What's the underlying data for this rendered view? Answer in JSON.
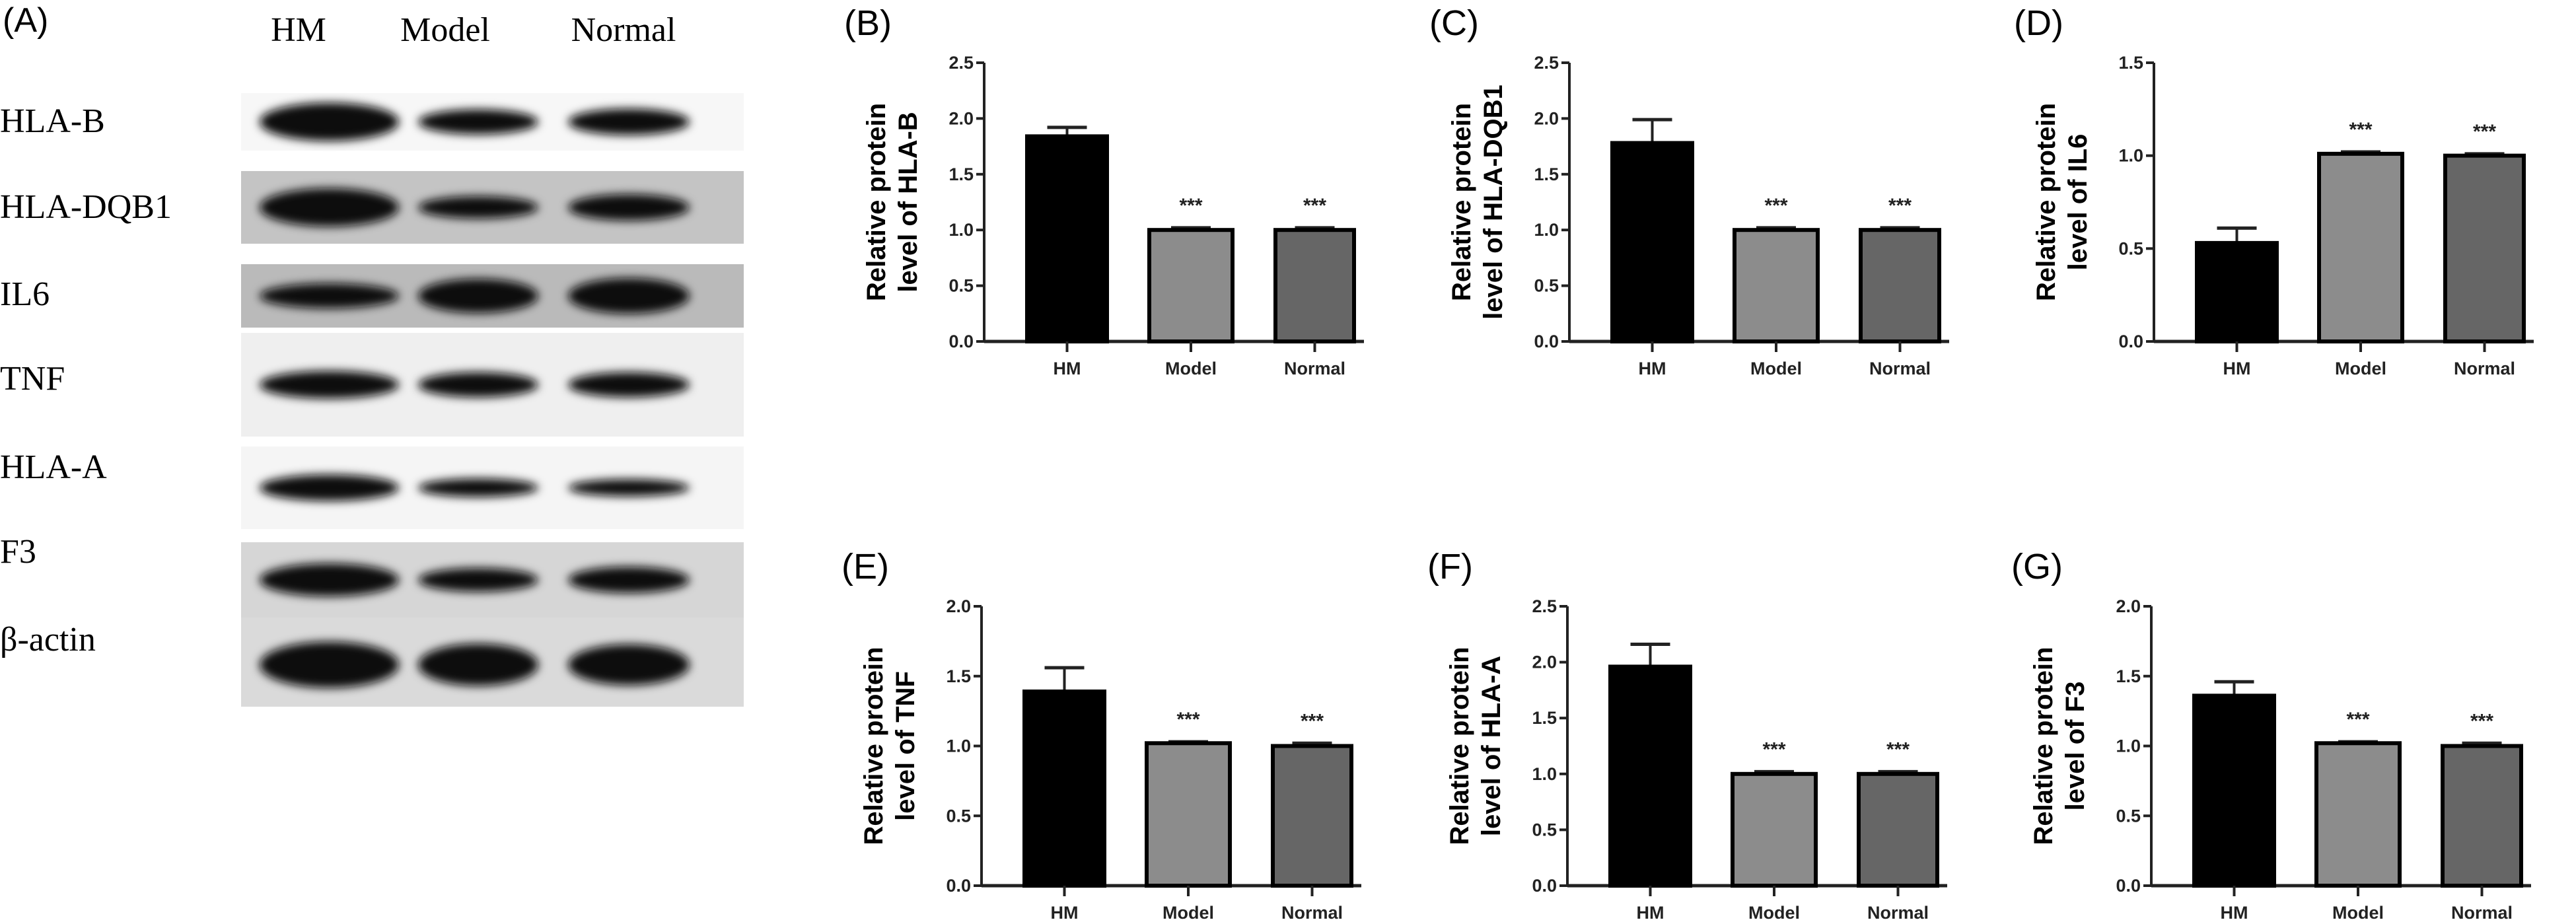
{
  "blot": {
    "panel_label": "(A)",
    "lanes": [
      "HM",
      "Model",
      "Normal"
    ],
    "rows": [
      "HLA-B",
      "HLA-DQB1",
      "IL6",
      "TNF",
      "HLA-A",
      "F3",
      "β-actin"
    ]
  },
  "colors": {
    "HM": "#000000",
    "Model": "#8c8c8c",
    "Normal": "#666666"
  },
  "chart_data": [
    {
      "type": "bar",
      "panel_label": "(B)",
      "title": "",
      "ylabel_lines": [
        "Relative protein",
        "level of HLA-B"
      ],
      "xlabel": "",
      "categories": [
        "HM",
        "Model",
        "Normal"
      ],
      "values": [
        1.84,
        1.0,
        1.0
      ],
      "errors": [
        0.08,
        0.02,
        0.02
      ],
      "significance": [
        "",
        "***",
        "***"
      ],
      "ylim": [
        0,
        2.5
      ],
      "yticks": [
        "0.0",
        "0.5",
        "1.0",
        "1.5",
        "2.0",
        "2.5"
      ],
      "grid": false
    },
    {
      "type": "bar",
      "panel_label": "(C)",
      "title": "",
      "ylabel_lines": [
        "Relative protein",
        "level of HLA-DQB1"
      ],
      "xlabel": "",
      "categories": [
        "HM",
        "Model",
        "Normal"
      ],
      "values": [
        1.78,
        1.0,
        1.0
      ],
      "errors": [
        0.21,
        0.02,
        0.02
      ],
      "significance": [
        "",
        "***",
        "***"
      ],
      "ylim": [
        0,
        2.5
      ],
      "yticks": [
        "0.0",
        "0.5",
        "1.0",
        "1.5",
        "2.0",
        "2.5"
      ],
      "grid": false
    },
    {
      "type": "bar",
      "panel_label": "(D)",
      "title": "",
      "ylabel_lines": [
        "Relative protein",
        "level of IL6"
      ],
      "xlabel": "",
      "categories": [
        "HM",
        "Model",
        "Normal"
      ],
      "values": [
        0.53,
        1.01,
        1.0
      ],
      "errors": [
        0.08,
        0.01,
        0.01
      ],
      "significance": [
        "",
        "***",
        "***"
      ],
      "ylim": [
        0,
        1.5
      ],
      "yticks": [
        "0.0",
        "0.5",
        "1.0",
        "1.5"
      ],
      "grid": false
    },
    {
      "type": "bar",
      "panel_label": "(E)",
      "title": "",
      "ylabel_lines": [
        "Relative protein",
        "level of TNF"
      ],
      "xlabel": "",
      "categories": [
        "HM",
        "Model",
        "Normal"
      ],
      "values": [
        1.39,
        1.02,
        1.0
      ],
      "errors": [
        0.17,
        0.01,
        0.02
      ],
      "significance": [
        "",
        "***",
        "***"
      ],
      "ylim": [
        0,
        2.0
      ],
      "yticks": [
        "0.0",
        "0.5",
        "1.0",
        "1.5",
        "2.0"
      ],
      "grid": false
    },
    {
      "type": "bar",
      "panel_label": "(F)",
      "title": "",
      "ylabel_lines": [
        "Relative protein",
        "level of HLA-A"
      ],
      "xlabel": "",
      "categories": [
        "HM",
        "Model",
        "Normal"
      ],
      "values": [
        1.96,
        1.0,
        1.0
      ],
      "errors": [
        0.2,
        0.02,
        0.02
      ],
      "significance": [
        "",
        "***",
        "***"
      ],
      "ylim": [
        0,
        2.5
      ],
      "yticks": [
        "0.0",
        "0.5",
        "1.0",
        "1.5",
        "2.0",
        "2.5"
      ],
      "grid": false
    },
    {
      "type": "bar",
      "panel_label": "(G)",
      "title": "",
      "ylabel_lines": [
        "Relative protein",
        "level of F3"
      ],
      "xlabel": "",
      "categories": [
        "HM",
        "Model",
        "Normal"
      ],
      "values": [
        1.36,
        1.02,
        1.0
      ],
      "errors": [
        0.1,
        0.01,
        0.02
      ],
      "significance": [
        "",
        "***",
        "***"
      ],
      "ylim": [
        0,
        2.0
      ],
      "yticks": [
        "0.0",
        "0.5",
        "1.0",
        "1.5",
        "2.0"
      ],
      "grid": false
    }
  ]
}
